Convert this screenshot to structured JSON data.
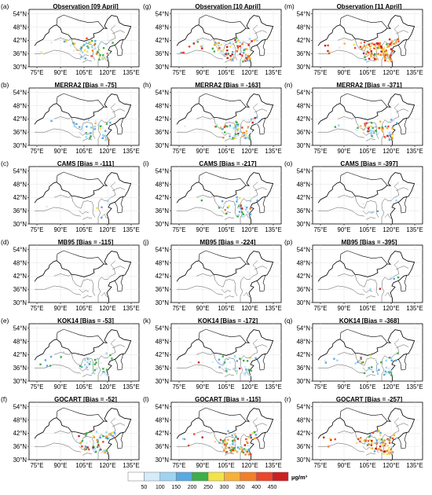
{
  "figure": {
    "lat_ticks": [
      "54°N",
      "48°N",
      "42°N",
      "36°N",
      "30°N"
    ],
    "lon_ticks": [
      "75°E",
      "90°E",
      "105°E",
      "120°E",
      "135°E"
    ],
    "panels": [
      {
        "letter": "(a)",
        "title": "Observation [09 April]",
        "column": 0,
        "row": 0,
        "density": "medium"
      },
      {
        "letter": "(g)",
        "title": "Observation [10 April]",
        "column": 1,
        "row": 0,
        "density": "high"
      },
      {
        "letter": "(m)",
        "title": "Observation [11 April]",
        "column": 2,
        "row": 0,
        "density": "very-high"
      },
      {
        "letter": "(b)",
        "title": "MERRA2 [Bias = -75]",
        "column": 0,
        "row": 1,
        "density": "low"
      },
      {
        "letter": "(h)",
        "title": "MERRA2 [Bias = -163]",
        "column": 1,
        "row": 1,
        "density": "medium"
      },
      {
        "letter": "(n)",
        "title": "MERRA2 [Bias = -371]",
        "column": 2,
        "row": 1,
        "density": "medium"
      },
      {
        "letter": "(c)",
        "title": "CAMS [Bias = -111]",
        "column": 0,
        "row": 2,
        "density": "very-low"
      },
      {
        "letter": "(i)",
        "title": "CAMS [Bias = -217]",
        "column": 1,
        "row": 2,
        "density": "low"
      },
      {
        "letter": "(o)",
        "title": "CAMS [Bias = -397]",
        "column": 2,
        "row": 2,
        "density": "very-low"
      },
      {
        "letter": "(d)",
        "title": "MB95 [Bias = -115]",
        "column": 0,
        "row": 3,
        "density": "none"
      },
      {
        "letter": "(j)",
        "title": "MB95 [Bias = -224]",
        "column": 1,
        "row": 3,
        "density": "none"
      },
      {
        "letter": "(p)",
        "title": "MB95 [Bias = -395]",
        "column": 2,
        "row": 3,
        "density": "very-low"
      },
      {
        "letter": "(e)",
        "title": "KOK14 [Bias = -53]",
        "column": 0,
        "row": 4,
        "density": "low"
      },
      {
        "letter": "(k)",
        "title": "KOK14 [Bias = -172]",
        "column": 1,
        "row": 4,
        "density": "low"
      },
      {
        "letter": "(q)",
        "title": "KOK14 [Bias = -368]",
        "column": 2,
        "row": 4,
        "density": "low"
      },
      {
        "letter": "(f)",
        "title": "GOCART [Bias = -52]",
        "column": 0,
        "row": 5,
        "density": "medium"
      },
      {
        "letter": "(l)",
        "title": "GOCART [Bias = -115]",
        "column": 1,
        "row": 5,
        "density": "high"
      },
      {
        "letter": "(r)",
        "title": "GOCART [Bias = -257]",
        "column": 2,
        "row": 5,
        "density": "high"
      }
    ]
  },
  "colorbar": {
    "labels": [
      "50",
      "100",
      "150",
      "200",
      "250",
      "300",
      "350",
      "400",
      "450"
    ],
    "unit": "µg/m³",
    "colors": [
      "#ffffff",
      "#d5ecf9",
      "#9fd3f2",
      "#5aa9e0",
      "#3dae4a",
      "#f2e34a",
      "#f6b13a",
      "#f27f2c",
      "#e9472b",
      "#cc1f1f"
    ]
  }
}
